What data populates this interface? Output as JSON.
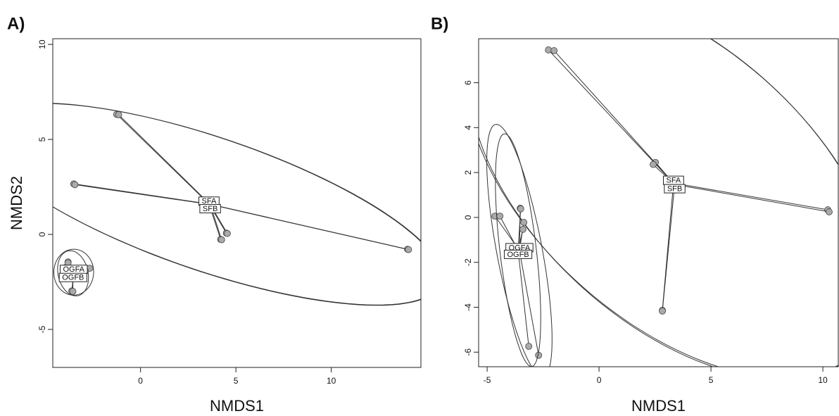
{
  "chart_data": [
    {
      "type": "scatter",
      "title": "A)",
      "xlabel": "NMDS1",
      "ylabel": "NMDS2",
      "xlim": [
        -4.6,
        14.7
      ],
      "ylim": [
        -7.0,
        10.3
      ],
      "xticks": [
        0,
        5,
        10
      ],
      "yticks": [
        -5,
        0,
        5,
        10
      ],
      "point_color": "#aaaaaa",
      "line_color": "#333333",
      "series": [
        {
          "name": "SFA",
          "x": [
            -1.25,
            -3.5,
            4.5,
            4.2,
            14.0
          ],
          "y": [
            6.32,
            2.66,
            0.07,
            -0.26,
            -0.78
          ]
        },
        {
          "name": "SFB",
          "x": [
            -1.15,
            -3.44,
            4.55,
            4.25,
            14.05
          ],
          "y": [
            6.3,
            2.62,
            0.05,
            -0.28,
            -0.8
          ]
        },
        {
          "name": "OGFA",
          "x": [
            -3.8,
            -2.66,
            -3.6,
            -3.95
          ],
          "y": [
            -1.45,
            -1.78,
            -2.97,
            -1.75
          ]
        },
        {
          "name": "OGFB",
          "x": [
            -3.9,
            -2.9,
            -3.55,
            -3.8
          ],
          "y": [
            -1.75,
            -1.93,
            -3.0,
            -1.5
          ]
        }
      ]
    },
    {
      "type": "scatter",
      "title": "B)",
      "xlabel": "NMDS1",
      "xlim": [
        -5.38,
        10.69
      ],
      "ylim": [
        -6.65,
        7.96
      ],
      "xticks": [
        -5,
        0,
        5,
        10
      ],
      "yticks": [
        -6,
        -4,
        -2,
        0,
        2,
        4,
        6
      ],
      "point_color": "#aaaaaa",
      "line_color": "#333333",
      "series": [
        {
          "name": "SFA",
          "x": [
            -2.26,
            2.52,
            10.22,
            2.83
          ],
          "y": [
            7.46,
            2.45,
            0.34,
            -4.14
          ]
        },
        {
          "name": "SFB",
          "x": [
            -2.01,
            2.42,
            10.28,
            2.83
          ],
          "y": [
            7.43,
            2.36,
            0.25,
            -4.17
          ]
        },
        {
          "name": "OGFA",
          "x": [
            -4.65,
            -3.52,
            -3.36,
            -2.7
          ],
          "y": [
            0.06,
            0.41,
            -0.22,
            -6.14
          ]
        },
        {
          "name": "OGFB",
          "x": [
            -4.43,
            -3.5,
            -3.4,
            -3.14
          ],
          "y": [
            0.06,
            0.38,
            -0.53,
            -5.74
          ]
        }
      ]
    }
  ]
}
